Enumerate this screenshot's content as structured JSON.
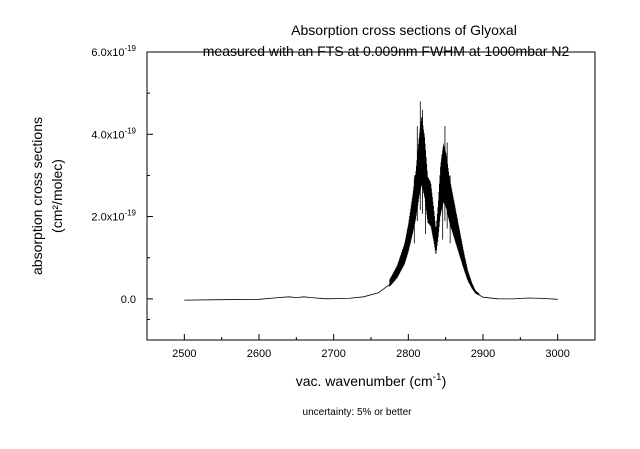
{
  "chart_data": {
    "type": "line",
    "title": [
      "Absorption cross sections of Glyoxal",
      "measured with an FTS at 0.009nm FWHM at 1000mbar N2"
    ],
    "xlabel": "vac. wavenumber (cm-1)",
    "ylabel": [
      "absorption cross sections",
      "(cm²/molec)"
    ],
    "xlim": [
      2450,
      3050
    ],
    "ylim": [
      -1e-19,
      6e-19
    ],
    "x_ticks": [
      {
        "value": 2500,
        "label": "2500"
      },
      {
        "value": 2600,
        "label": "2600"
      },
      {
        "value": 2700,
        "label": "2700"
      },
      {
        "value": 2800,
        "label": "2800"
      },
      {
        "value": 2900,
        "label": "2900"
      },
      {
        "value": 3000,
        "label": "3000"
      }
    ],
    "y_ticks": [
      {
        "value": 0,
        "mantissa": "0.0",
        "exponent": ""
      },
      {
        "value": 2e-19,
        "mantissa": "2.0x10",
        "exponent": "-19"
      },
      {
        "value": 4e-19,
        "mantissa": "4.0x10",
        "exponent": "-19"
      },
      {
        "value": 6e-19,
        "mantissa": "6.0x10",
        "exponent": "-19"
      }
    ],
    "grid": false,
    "legend": "none",
    "series": [
      {
        "color": "#000000",
        "x": [
          2500,
          2550,
          2600,
          2620,
          2640,
          2650,
          2660,
          2670,
          2690,
          2720,
          2740,
          2760,
          2775,
          2785,
          2795,
          2800,
          2805,
          2810,
          2815,
          2818,
          2822,
          2826,
          2830,
          2834,
          2837,
          2840,
          2843,
          2847,
          2851,
          2855,
          2860,
          2865,
          2870,
          2875,
          2880,
          2885,
          2890,
          2900,
          2920,
          2940,
          2960,
          2980,
          3000
        ],
        "y": [
          -3e-21,
          -2e-21,
          -1e-21,
          2e-21,
          5e-21,
          3e-21,
          5e-21,
          3e-21,
          1e-22,
          1e-21,
          5e-21,
          1.5e-20,
          3.5e-20,
          6e-20,
          1e-19,
          1.35e-19,
          1.8e-19,
          2.3e-19,
          3e-19,
          3.3e-19,
          2.9e-19,
          2.2e-19,
          2.1e-19,
          1.65e-19,
          1.25e-19,
          1.75e-19,
          2.4e-19,
          2.8e-19,
          2.6e-19,
          2.2e-19,
          1.85e-19,
          1.5e-19,
          1.15e-19,
          8e-20,
          5e-20,
          3e-20,
          1.5e-20,
          4e-21,
          2e-22,
          -2e-22,
          2e-21,
          1e-21,
          -1e-21
        ]
      }
    ],
    "peak_spikes": [
      {
        "x": 2808,
        "y": 3e-19
      },
      {
        "x": 2812,
        "y": 4.2e-19
      },
      {
        "x": 2816,
        "y": 4.8e-19
      },
      {
        "x": 2819,
        "y": 4.6e-19
      },
      {
        "x": 2823,
        "y": 3.5e-19
      },
      {
        "x": 2846,
        "y": 3.2e-19
      },
      {
        "x": 2849,
        "y": 4.2e-19
      },
      {
        "x": 2852,
        "y": 3.8e-19
      },
      {
        "x": 2856,
        "y": 3e-19
      }
    ]
  },
  "footnote": "uncertainty: 5% or better"
}
